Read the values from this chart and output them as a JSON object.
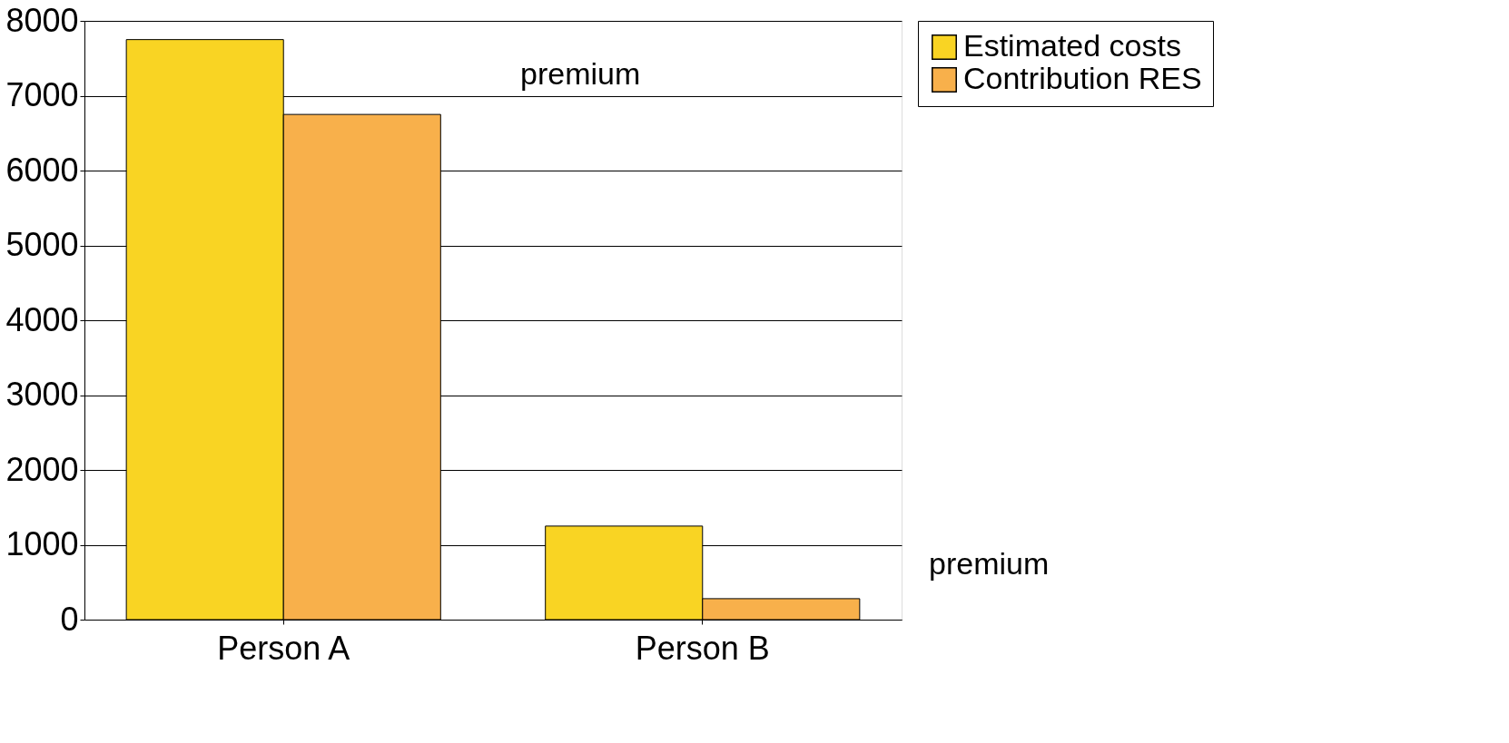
{
  "chart_data": {
    "type": "bar",
    "categories": [
      "Person A",
      "Person B"
    ],
    "series": [
      {
        "name": "Estimated costs",
        "color": "#f9d423",
        "values": [
          7750,
          1250
        ]
      },
      {
        "name": "Contribution RES",
        "color": "#f8b04b",
        "values": [
          6750,
          280
        ]
      }
    ],
    "ylim": [
      0,
      8000
    ],
    "yticks": [
      0,
      1000,
      2000,
      3000,
      4000,
      5000,
      6000,
      7000,
      8000
    ],
    "grid": "y",
    "legend": "right",
    "annotations": [
      "premium",
      "premium"
    ]
  }
}
